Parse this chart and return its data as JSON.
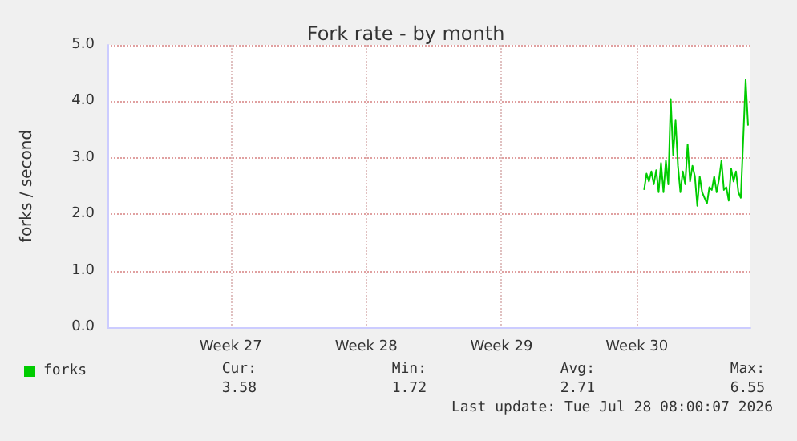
{
  "chart_data": {
    "type": "line",
    "title": "Fork rate - by month",
    "ylabel": "forks / second",
    "categories": [
      null,
      null,
      null,
      null,
      null,
      null,
      null,
      null,
      null,
      null,
      null,
      null,
      null,
      null,
      null,
      null,
      null,
      null,
      null,
      null,
      null,
      null,
      null,
      null,
      null,
      null,
      null,
      null,
      null,
      null,
      null,
      null,
      null,
      null,
      null,
      null,
      null,
      null,
      null,
      null,
      null,
      null,
      null,
      null,
      null,
      null,
      null,
      null,
      null,
      null,
      null,
      "Week 27",
      null,
      null,
      null,
      null,
      null,
      null,
      null,
      null,
      null,
      null,
      null,
      null,
      null,
      null,
      null,
      null,
      null,
      null,
      null,
      null,
      null,
      null,
      null,
      null,
      null,
      null,
      null,
      null,
      null,
      null,
      null,
      null,
      null,
      null,
      null,
      null,
      null,
      null,
      null,
      null,
      null,
      null,
      null,
      null,
      null,
      null,
      null,
      null,
      null,
      null,
      null,
      null,
      null,
      null,
      null,
      "Week 28",
      null,
      null,
      null,
      null,
      null,
      null,
      null,
      null,
      null,
      null,
      null,
      null,
      null,
      null,
      null,
      null,
      null,
      null,
      null,
      null,
      null,
      null,
      null,
      null,
      null,
      null,
      null,
      null,
      null,
      null,
      null,
      null,
      null,
      null,
      null,
      null,
      null,
      null,
      null,
      null,
      null,
      null,
      null,
      null,
      null,
      null,
      null,
      null,
      null,
      null,
      null,
      null,
      null,
      null,
      null,
      "Week 29",
      null,
      null,
      null,
      null,
      null,
      null,
      null,
      null,
      null,
      null,
      null,
      null,
      null,
      null,
      null,
      null,
      null,
      null,
      null,
      null,
      null,
      null,
      null,
      null,
      null,
      null,
      null,
      null,
      null,
      null,
      null,
      null,
      null,
      null,
      null,
      null,
      null,
      null,
      null,
      null,
      null,
      null,
      null,
      null,
      null,
      null,
      null,
      null,
      null,
      null,
      null,
      null,
      null,
      null,
      null,
      "Week 30",
      null,
      null,
      null,
      null,
      null,
      null,
      null,
      null,
      null,
      null,
      null,
      null,
      null,
      null,
      null,
      null,
      null,
      null,
      null,
      null,
      null,
      null,
      null,
      null,
      null,
      null,
      null,
      null,
      null,
      null,
      null,
      null,
      null,
      null,
      null,
      null,
      null,
      null,
      null,
      null,
      null,
      null,
      null,
      null,
      null,
      null,
      null
    ],
    "series": [
      {
        "name": "forks",
        "color": "#00cc00",
        "values": [
          null,
          null,
          null,
          null,
          null,
          null,
          null,
          null,
          null,
          null,
          null,
          null,
          null,
          null,
          null,
          null,
          null,
          null,
          null,
          null,
          null,
          null,
          null,
          null,
          null,
          null,
          null,
          null,
          null,
          null,
          null,
          null,
          null,
          null,
          null,
          null,
          null,
          null,
          null,
          null,
          null,
          null,
          null,
          null,
          null,
          null,
          null,
          null,
          null,
          null,
          null,
          null,
          null,
          null,
          null,
          null,
          null,
          null,
          null,
          null,
          null,
          null,
          null,
          null,
          null,
          null,
          null,
          null,
          null,
          null,
          null,
          null,
          null,
          null,
          null,
          null,
          null,
          null,
          null,
          null,
          null,
          null,
          null,
          null,
          null,
          null,
          null,
          null,
          null,
          null,
          null,
          null,
          null,
          null,
          null,
          null,
          null,
          null,
          null,
          null,
          null,
          null,
          null,
          null,
          null,
          null,
          null,
          null,
          null,
          null,
          null,
          null,
          null,
          null,
          null,
          null,
          null,
          null,
          null,
          null,
          null,
          null,
          null,
          null,
          null,
          null,
          null,
          null,
          null,
          null,
          null,
          null,
          null,
          null,
          null,
          null,
          null,
          null,
          null,
          null,
          null,
          null,
          null,
          null,
          null,
          null,
          null,
          null,
          null,
          null,
          null,
          null,
          null,
          null,
          null,
          null,
          null,
          null,
          null,
          null,
          null,
          null,
          null,
          null,
          null,
          null,
          null,
          null,
          null,
          null,
          null,
          null,
          null,
          null,
          null,
          null,
          null,
          null,
          null,
          null,
          null,
          null,
          null,
          null,
          null,
          null,
          null,
          null,
          null,
          null,
          null,
          null,
          null,
          null,
          null,
          null,
          null,
          null,
          null,
          null,
          null,
          null,
          null,
          null,
          null,
          null,
          null,
          null,
          null,
          null,
          null,
          null,
          null,
          null,
          null,
          null,
          null,
          null,
          null,
          null,
          null,
          null,
          2.43,
          2.72,
          2.58,
          2.76,
          2.53,
          2.78,
          2.39,
          2.91,
          2.39,
          2.95,
          2.53,
          4.04,
          3.05,
          3.66,
          2.86,
          2.39,
          2.76,
          2.53,
          3.24,
          2.58,
          2.86,
          2.67,
          2.15,
          2.67,
          2.39,
          2.29,
          2.19,
          2.48,
          2.43,
          2.67,
          2.39,
          2.62,
          2.95,
          2.43,
          2.48,
          2.24,
          2.81,
          2.58,
          2.76,
          2.39,
          2.29,
          3.33,
          4.38,
          3.57,
          null
        ]
      }
    ],
    "ylim": [
      0,
      5
    ],
    "yticks": [
      {
        "value": 0,
        "label": "0.0"
      },
      {
        "value": 1,
        "label": "1.0"
      },
      {
        "value": 2,
        "label": "2.0"
      },
      {
        "value": 3,
        "label": "3.0"
      },
      {
        "value": 4,
        "label": "4.0"
      },
      {
        "value": 5,
        "label": "5.0"
      }
    ],
    "grid": true,
    "legend": "bottom left",
    "marker": "none",
    "line_style": "solid",
    "annotations": [
      "Cur:",
      "Min:",
      "Avg:",
      "Max:",
      "3.58",
      "1.72",
      "2.71",
      "6.55",
      "Last update: Tue Jul 28 08:00:07 2026"
    ]
  }
}
